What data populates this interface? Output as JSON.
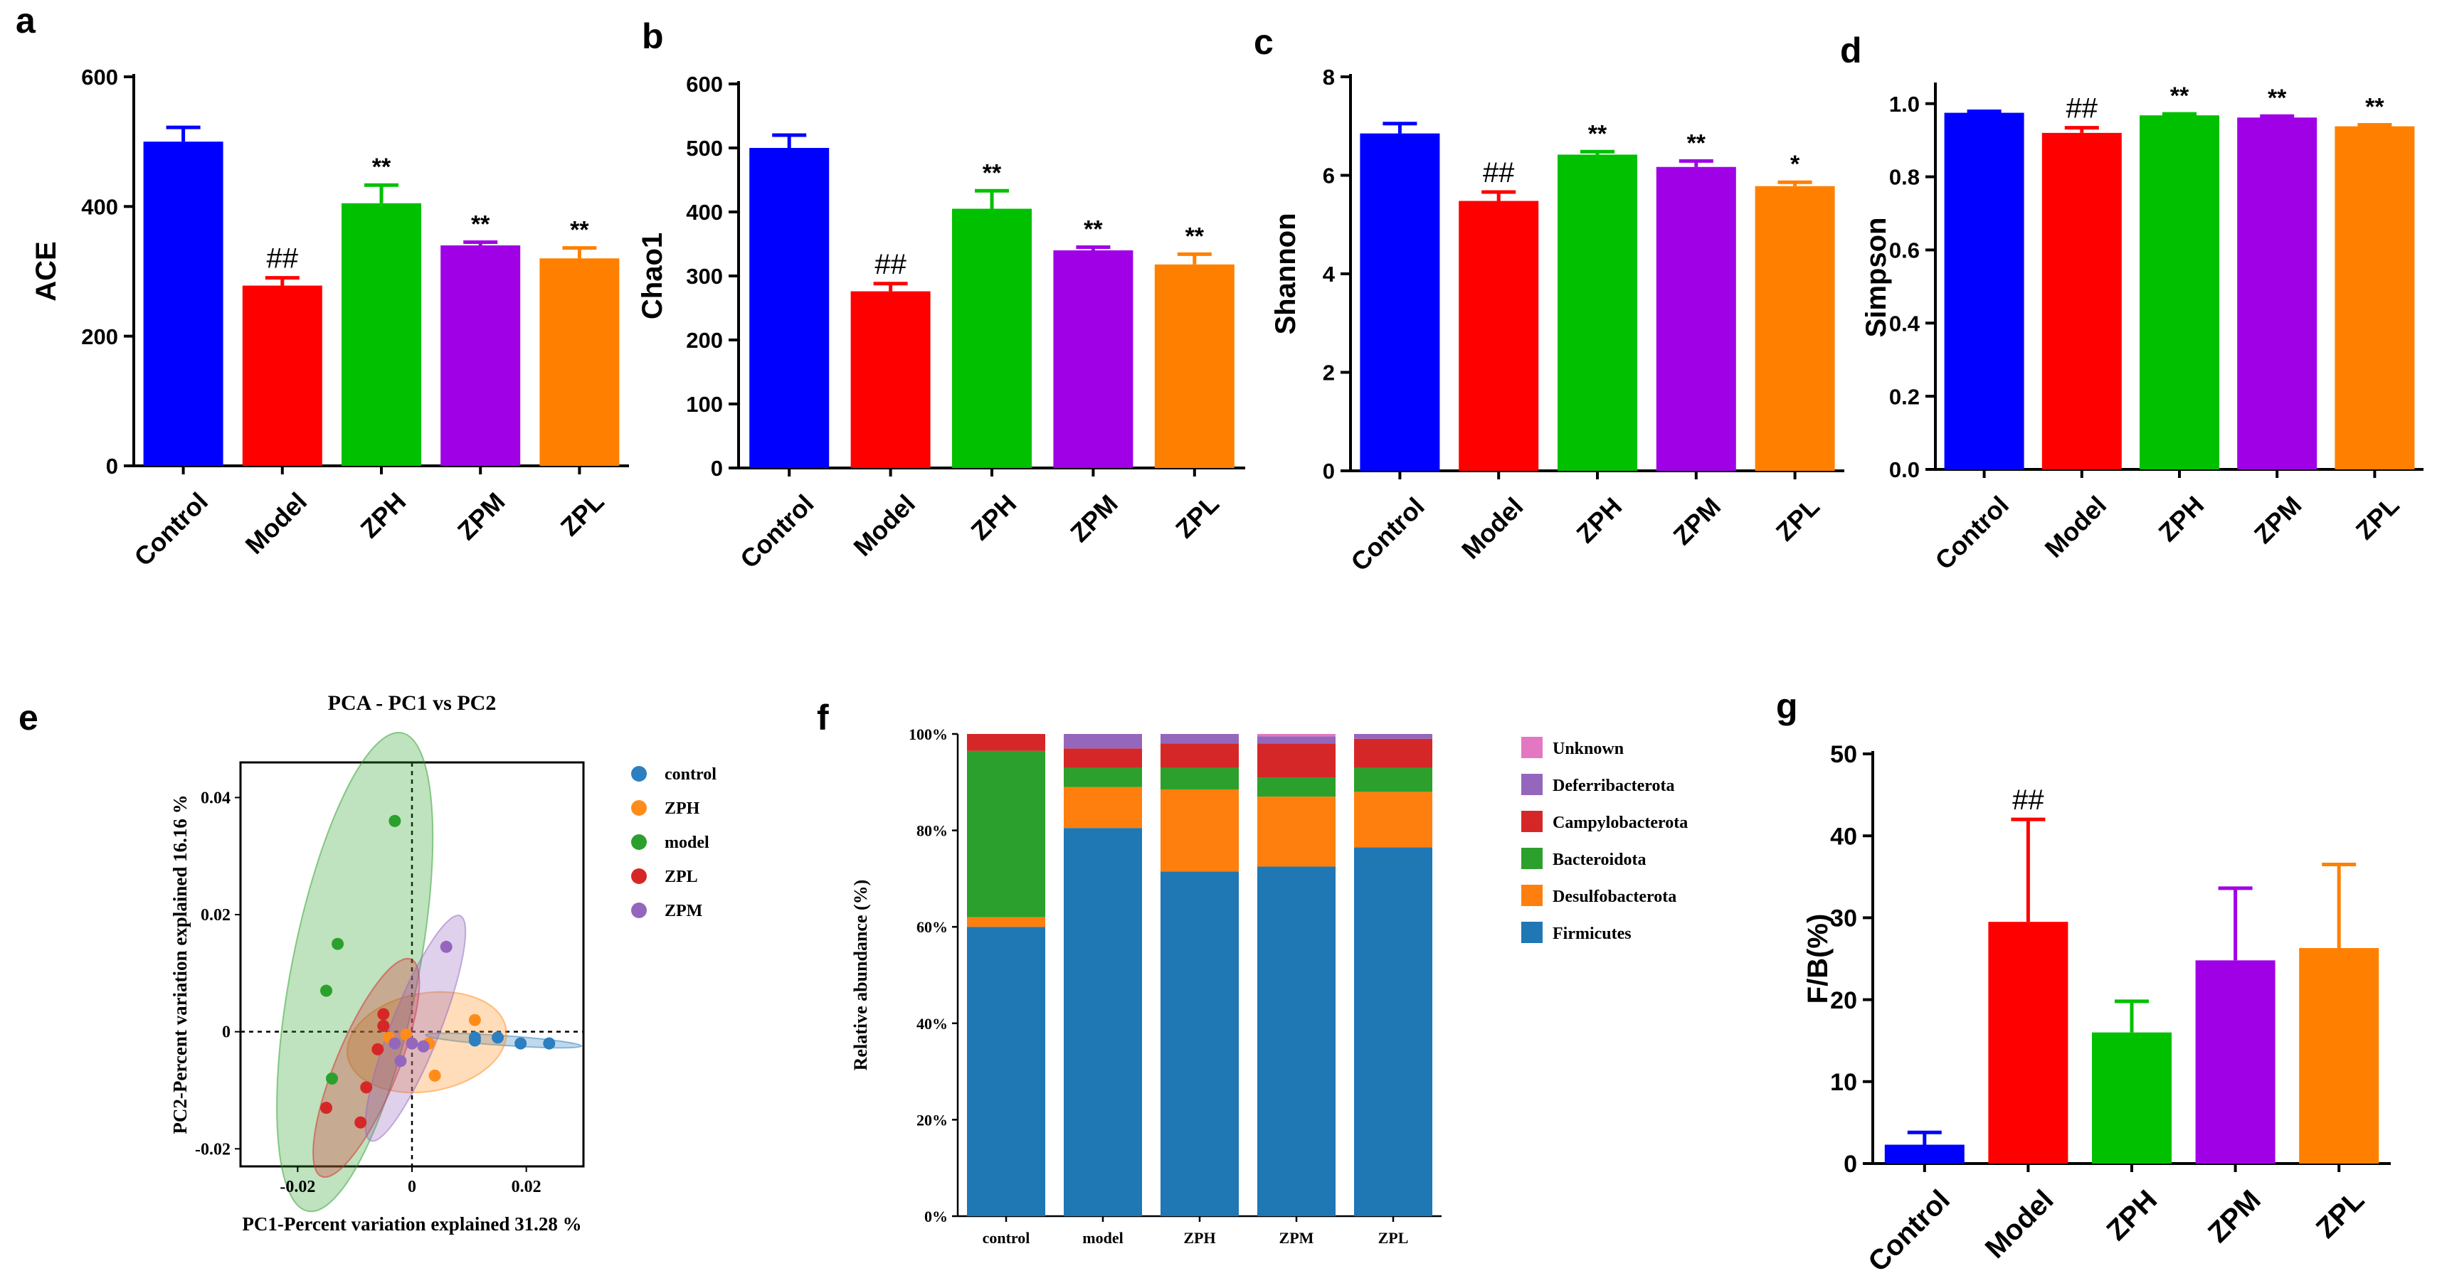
{
  "panels": {
    "a": {
      "letter": "a"
    },
    "b": {
      "letter": "b"
    },
    "c": {
      "letter": "c"
    },
    "d": {
      "letter": "d"
    },
    "e": {
      "letter": "e"
    },
    "f": {
      "letter": "f"
    },
    "g": {
      "letter": "g"
    }
  },
  "colors": {
    "control": "#0000FF",
    "model": "#FF0000",
    "zph": "#00C000",
    "zpm": "#A000E6",
    "zpl": "#FF8000"
  },
  "chart_data": [
    {
      "id": "a",
      "type": "bar",
      "title": "",
      "xlabel": "",
      "ylabel": "ACE",
      "categories": [
        "Control",
        "Model",
        "ZPH",
        "ZPM",
        "ZPL"
      ],
      "values": [
        500,
        278,
        405,
        340,
        320
      ],
      "errors": [
        22,
        12,
        28,
        5,
        16
      ],
      "annotations": [
        "",
        "##",
        "**",
        "**",
        "**"
      ],
      "ylim": [
        0,
        600
      ],
      "yticks": [
        0,
        200,
        400,
        600
      ],
      "ytick_labels": [
        "0",
        "200",
        "400",
        "600"
      ]
    },
    {
      "id": "b",
      "type": "bar",
      "title": "",
      "xlabel": "",
      "ylabel": "Chao1",
      "categories": [
        "Control",
        "Model",
        "ZPH",
        "ZPM",
        "ZPL"
      ],
      "values": [
        500,
        276,
        405,
        340,
        318
      ],
      "errors": [
        20,
        12,
        28,
        5,
        16
      ],
      "annotations": [
        "",
        "##",
        "**",
        "**",
        "**"
      ],
      "ylim": [
        0,
        600
      ],
      "yticks": [
        0,
        100,
        200,
        300,
        400,
        500,
        600
      ],
      "ytick_labels": [
        "0",
        "100",
        "200",
        "300",
        "400",
        "500",
        "600"
      ]
    },
    {
      "id": "c",
      "type": "bar",
      "title": "",
      "xlabel": "",
      "ylabel": "Shannon",
      "categories": [
        "Control",
        "Model",
        "ZPH",
        "ZPM",
        "ZPL"
      ],
      "values": [
        6.85,
        5.48,
        6.42,
        6.17,
        5.78
      ],
      "errors": [
        0.2,
        0.18,
        0.06,
        0.12,
        0.08
      ],
      "annotations": [
        "",
        "##",
        "**",
        "**",
        "*"
      ],
      "ylim": [
        0,
        8
      ],
      "yticks": [
        0,
        2,
        4,
        6,
        8
      ],
      "ytick_labels": [
        "0",
        "2",
        "4",
        "6",
        "8"
      ]
    },
    {
      "id": "d",
      "type": "bar",
      "title": "",
      "xlabel": "",
      "ylabel": "Simpson",
      "categories": [
        "Control",
        "Model",
        "ZPH",
        "ZPM",
        "ZPL"
      ],
      "values": [
        0.975,
        0.92,
        0.968,
        0.962,
        0.938
      ],
      "errors": [
        0.004,
        0.014,
        0.004,
        0.004,
        0.004
      ],
      "annotations": [
        "",
        "##",
        "**",
        "**",
        "**"
      ],
      "ylim": [
        0,
        1.05
      ],
      "yticks": [
        0,
        0.2,
        0.4,
        0.6,
        0.8,
        1.0
      ],
      "ytick_labels": [
        "0.0",
        "0.2",
        "0.4",
        "0.6",
        "0.8",
        "1.0"
      ]
    },
    {
      "id": "e",
      "type": "scatter",
      "title": "PCA - PC1 vs PC2",
      "xlabel": "PC1-Percent variation explained 31.28 %",
      "ylabel": "PC2-Percent variation explained 16.16 %",
      "xlim": [
        -0.03,
        0.03
      ],
      "ylim": [
        -0.023,
        0.046
      ],
      "xticks": [
        -0.02,
        0,
        0.02
      ],
      "xtick_labels": [
        "-0.02",
        "0",
        "0.02"
      ],
      "yticks": [
        -0.02,
        0,
        0.02,
        0.04
      ],
      "ytick_labels": [
        "-0.02",
        "0",
        "0.02",
        "0.04"
      ],
      "legend": [
        "control",
        "ZPH",
        "model",
        "ZPL",
        "ZPM"
      ],
      "legend_position": "right",
      "series": [
        {
          "name": "control",
          "color": "#2C7FC0",
          "points": [
            [
              0.011,
              -0.001
            ],
            [
              0.011,
              -0.0015
            ],
            [
              0.015,
              -0.001
            ],
            [
              0.019,
              -0.002
            ],
            [
              0.024,
              -0.002
            ]
          ]
        },
        {
          "name": "ZPH",
          "color": "#FF8C1A",
          "points": [
            [
              0.011,
              0.002
            ],
            [
              0.004,
              -0.0075
            ],
            [
              0.003,
              -0.002
            ],
            [
              -0.001,
              -0.0005
            ],
            [
              -0.004,
              -0.001
            ]
          ]
        },
        {
          "name": "model",
          "color": "#2CA02C",
          "points": [
            [
              -0.003,
              0.036
            ],
            [
              -0.013,
              0.015
            ],
            [
              -0.015,
              0.007
            ],
            [
              -0.014,
              -0.008
            ],
            [
              -0.005,
              0.001
            ]
          ]
        },
        {
          "name": "ZPL",
          "color": "#D62728",
          "points": [
            [
              -0.015,
              -0.013
            ],
            [
              -0.009,
              -0.0155
            ],
            [
              -0.008,
              -0.0095
            ],
            [
              -0.005,
              0.003
            ],
            [
              -0.006,
              -0.003
            ],
            [
              -0.005,
              0.001
            ]
          ]
        },
        {
          "name": "ZPM",
          "color": "#9467BD",
          "points": [
            [
              0.006,
              0.0145
            ],
            [
              -0.002,
              -0.005
            ],
            [
              0,
              -0.002
            ],
            [
              0.002,
              -0.0025
            ],
            [
              -0.003,
              -0.002
            ]
          ]
        }
      ]
    },
    {
      "id": "f",
      "type": "bar",
      "stacked": true,
      "title": "",
      "xlabel": "",
      "ylabel": "Relative abundance (%)",
      "categories": [
        "control",
        "model",
        "ZPH",
        "ZPM",
        "ZPL"
      ],
      "ylim": [
        0,
        100
      ],
      "yticks": [
        0,
        20,
        40,
        60,
        80,
        100
      ],
      "ytick_labels": [
        "0%",
        "20%",
        "40%",
        "60%",
        "80%",
        "100%"
      ],
      "legend_position": "right",
      "series": [
        {
          "name": "Firmicutes",
          "color": "#1F77B4",
          "values": [
            60,
            80.5,
            71.5,
            72.5,
            76.5
          ]
        },
        {
          "name": "Desulfobacterota",
          "color": "#FF7F0E",
          "values": [
            2,
            8.5,
            17,
            14.5,
            11.5
          ]
        },
        {
          "name": "Bacteroidota",
          "color": "#2CA02C",
          "values": [
            34.5,
            4,
            4.5,
            4,
            5
          ]
        },
        {
          "name": "Campylobacterota",
          "color": "#D62728",
          "values": [
            3.5,
            4,
            5,
            7,
            6
          ]
        },
        {
          "name": "Deferribacterota",
          "color": "#9467BD",
          "values": [
            0,
            3,
            2,
            1.5,
            1
          ]
        },
        {
          "name": "Unknown",
          "color": "#E377C2",
          "values": [
            0,
            0,
            0,
            0.5,
            0
          ]
        }
      ],
      "legend": [
        "Unknown",
        "Deferribacterota",
        "Campylobacterota",
        "Bacteroidota",
        "Desulfobacterota",
        "Firmicutes"
      ]
    },
    {
      "id": "g",
      "type": "bar",
      "title": "",
      "xlabel": "",
      "ylabel": "F/B(%)",
      "categories": [
        "Control",
        "Model",
        "ZPH",
        "ZPM",
        "ZPL"
      ],
      "values": [
        2.3,
        29.5,
        16,
        24.8,
        26.3
      ],
      "errors": [
        1.5,
        12.5,
        3.8,
        8.8,
        10.2
      ],
      "annotations": [
        "",
        "##",
        "",
        "",
        ""
      ],
      "ylim": [
        0,
        50
      ],
      "yticks": [
        0,
        10,
        20,
        30,
        40,
        50
      ],
      "ytick_labels": [
        "0",
        "10",
        "20",
        "30",
        "40",
        "50"
      ]
    }
  ]
}
